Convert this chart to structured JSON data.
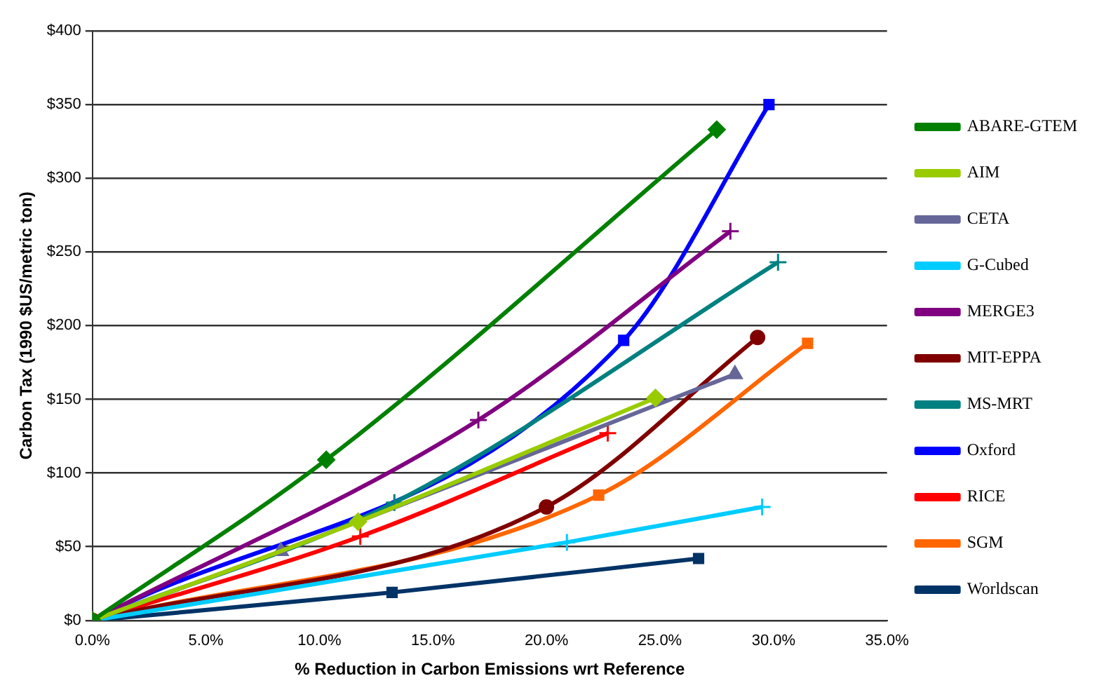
{
  "chart_data": {
    "type": "line",
    "xlabel": "% Reduction in Carbon Emissions wrt Reference",
    "ylabel": "Carbon Tax (1990 $US/metric ton)",
    "xlim": [
      0,
      35
    ],
    "xticks": [
      {
        "value": 0,
        "label": "0.0%"
      },
      {
        "value": 5,
        "label": "5.0%"
      },
      {
        "value": 10,
        "label": "10.0%"
      },
      {
        "value": 15,
        "label": "15.0%"
      },
      {
        "value": 20,
        "label": "20.0%"
      },
      {
        "value": 25,
        "label": "25.0%"
      },
      {
        "value": 30,
        "label": "30.0%"
      },
      {
        "value": 35,
        "label": "35.0%"
      }
    ],
    "ylim": [
      0,
      400
    ],
    "yticks": [
      {
        "value": 0,
        "label": "$0"
      },
      {
        "value": 50,
        "label": "$50"
      },
      {
        "value": 100,
        "label": "$100"
      },
      {
        "value": 150,
        "label": "$150"
      },
      {
        "value": 200,
        "label": "$200"
      },
      {
        "value": 250,
        "label": "$250"
      },
      {
        "value": 300,
        "label": "$300"
      },
      {
        "value": 350,
        "label": "$350"
      },
      {
        "value": 400,
        "label": "$400"
      }
    ],
    "grid": "y",
    "legend": "right",
    "line_style": "solid",
    "series": [
      {
        "name": "ABARE-GTEM",
        "color": "#008000",
        "marker": "diamond",
        "x": [
          0,
          10.3,
          27.5
        ],
        "values": [
          0,
          109,
          333
        ]
      },
      {
        "name": "AIM",
        "color": "#99cc00",
        "marker": "diamond",
        "x": [
          0,
          11.7,
          24.8
        ],
        "values": [
          0,
          67,
          151
        ]
      },
      {
        "name": "CETA",
        "color": "#666699",
        "marker": "triangle",
        "x": [
          0,
          8.3,
          28.3
        ],
        "values": [
          0,
          47,
          167
        ]
      },
      {
        "name": "G-Cubed",
        "color": "#00ccff",
        "marker": "cross",
        "x": [
          0,
          20.9,
          29.5
        ],
        "values": [
          0,
          53,
          77
        ]
      },
      {
        "name": "MERGE3",
        "color": "#800080",
        "marker": "cross",
        "x": [
          0,
          17,
          28.1
        ],
        "values": [
          0,
          136,
          264
        ]
      },
      {
        "name": "MIT-EPPA",
        "color": "#800000",
        "marker": "circle",
        "x": [
          0,
          20,
          29.3
        ],
        "values": [
          0,
          77,
          192
        ]
      },
      {
        "name": "MS-MRT",
        "color": "#008080",
        "marker": "cross",
        "x": [
          0,
          13.3,
          30.2
        ],
        "values": [
          0,
          80,
          243
        ]
      },
      {
        "name": "Oxford",
        "color": "#0000ff",
        "marker": "square",
        "x": [
          0,
          23.4,
          29.8
        ],
        "values": [
          0,
          190,
          350
        ]
      },
      {
        "name": "RICE",
        "color": "#ff0000",
        "marker": "cross",
        "x": [
          0,
          11.8,
          22.7
        ],
        "values": [
          0,
          57,
          127
        ]
      },
      {
        "name": "SGM",
        "color": "#ff6600",
        "marker": "square",
        "x": [
          0,
          22.3,
          31.5
        ],
        "values": [
          0,
          85,
          188
        ]
      },
      {
        "name": "Worldscan",
        "color": "#003366",
        "marker": "square",
        "x": [
          0,
          13.2,
          26.7
        ],
        "values": [
          0,
          19,
          42
        ]
      }
    ]
  }
}
